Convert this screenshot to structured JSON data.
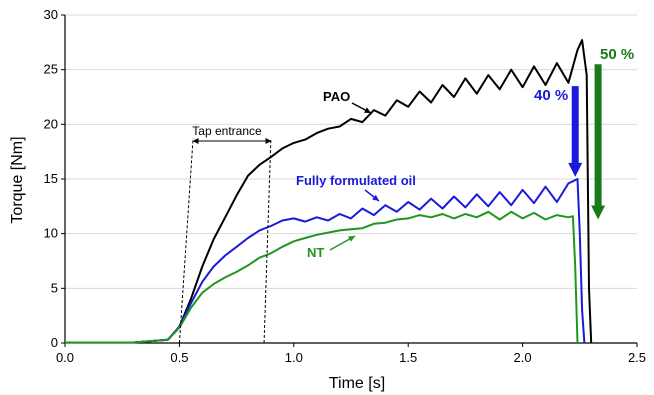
{
  "chart_data": {
    "type": "line",
    "xlabel": "Time [s]",
    "ylabel": "Torque [Nm]",
    "xlim": [
      0,
      2.5
    ],
    "ylim": [
      0,
      30
    ],
    "x_ticks": [
      "0.0",
      "0.5",
      "1.0",
      "1.5",
      "2.0",
      "2.5"
    ],
    "y_ticks": [
      "0",
      "5",
      "10",
      "15",
      "20",
      "25",
      "30"
    ],
    "grid": "horizontal",
    "series": [
      {
        "name": "PAO",
        "color": "#000000",
        "points": [
          [
            0,
            0.05
          ],
          [
            0.3,
            0.05
          ],
          [
            0.45,
            0.3
          ],
          [
            0.5,
            1.5
          ],
          [
            0.55,
            4
          ],
          [
            0.6,
            7
          ],
          [
            0.65,
            9.5
          ],
          [
            0.7,
            11.5
          ],
          [
            0.75,
            13.5
          ],
          [
            0.8,
            15.3
          ],
          [
            0.85,
            16.3
          ],
          [
            0.9,
            17
          ],
          [
            0.95,
            17.8
          ],
          [
            1.0,
            18.3
          ],
          [
            1.05,
            18.6
          ],
          [
            1.1,
            19.2
          ],
          [
            1.15,
            19.6
          ],
          [
            1.2,
            19.8
          ],
          [
            1.25,
            20.5
          ],
          [
            1.3,
            20.2
          ],
          [
            1.35,
            21.3
          ],
          [
            1.4,
            20.8
          ],
          [
            1.45,
            22.2
          ],
          [
            1.5,
            21.6
          ],
          [
            1.55,
            23.0
          ],
          [
            1.6,
            22.0
          ],
          [
            1.65,
            23.6
          ],
          [
            1.7,
            22.5
          ],
          [
            1.75,
            24.2
          ],
          [
            1.8,
            22.8
          ],
          [
            1.85,
            24.5
          ],
          [
            1.9,
            23.2
          ],
          [
            1.95,
            25.0
          ],
          [
            2.0,
            23.4
          ],
          [
            2.05,
            25.3
          ],
          [
            2.1,
            23.6
          ],
          [
            2.15,
            25.6
          ],
          [
            2.2,
            23.8
          ],
          [
            2.24,
            26.8
          ],
          [
            2.26,
            27.7
          ],
          [
            2.28,
            24.5
          ],
          [
            2.29,
            5
          ],
          [
            2.3,
            0
          ]
        ]
      },
      {
        "name": "Fully formulated oil",
        "color": "#1a1adc",
        "points": [
          [
            0,
            0.05
          ],
          [
            0.3,
            0.05
          ],
          [
            0.45,
            0.3
          ],
          [
            0.5,
            1.5
          ],
          [
            0.55,
            3.6
          ],
          [
            0.6,
            5.6
          ],
          [
            0.65,
            7
          ],
          [
            0.7,
            8
          ],
          [
            0.75,
            8.8
          ],
          [
            0.8,
            9.6
          ],
          [
            0.85,
            10.3
          ],
          [
            0.9,
            10.7
          ],
          [
            0.95,
            11.2
          ],
          [
            1.0,
            11.4
          ],
          [
            1.05,
            11.1
          ],
          [
            1.1,
            11.5
          ],
          [
            1.15,
            11.2
          ],
          [
            1.2,
            11.8
          ],
          [
            1.25,
            11.4
          ],
          [
            1.3,
            12.3
          ],
          [
            1.35,
            11.7
          ],
          [
            1.4,
            12.6
          ],
          [
            1.45,
            12.0
          ],
          [
            1.5,
            12.9
          ],
          [
            1.55,
            12.2
          ],
          [
            1.6,
            13.2
          ],
          [
            1.65,
            12.3
          ],
          [
            1.7,
            13.4
          ],
          [
            1.75,
            12.4
          ],
          [
            1.8,
            13.6
          ],
          [
            1.85,
            12.5
          ],
          [
            1.9,
            13.8
          ],
          [
            1.95,
            12.6
          ],
          [
            2.0,
            14.0
          ],
          [
            2.05,
            12.8
          ],
          [
            2.1,
            14.3
          ],
          [
            2.15,
            12.9
          ],
          [
            2.2,
            14.6
          ],
          [
            2.24,
            15.0
          ],
          [
            2.25,
            10
          ],
          [
            2.26,
            3
          ],
          [
            2.27,
            0
          ]
        ]
      },
      {
        "name": "NT",
        "color": "#1f961f",
        "points": [
          [
            0,
            0.05
          ],
          [
            0.3,
            0.05
          ],
          [
            0.45,
            0.3
          ],
          [
            0.5,
            1.4
          ],
          [
            0.55,
            3.2
          ],
          [
            0.6,
            4.6
          ],
          [
            0.65,
            5.4
          ],
          [
            0.7,
            6.0
          ],
          [
            0.75,
            6.5
          ],
          [
            0.8,
            7.1
          ],
          [
            0.85,
            7.8
          ],
          [
            0.9,
            8.2
          ],
          [
            0.95,
            8.8
          ],
          [
            1.0,
            9.3
          ],
          [
            1.05,
            9.6
          ],
          [
            1.1,
            9.9
          ],
          [
            1.15,
            10.1
          ],
          [
            1.2,
            10.3
          ],
          [
            1.25,
            10.4
          ],
          [
            1.3,
            10.5
          ],
          [
            1.35,
            10.9
          ],
          [
            1.4,
            11.0
          ],
          [
            1.45,
            11.3
          ],
          [
            1.5,
            11.4
          ],
          [
            1.55,
            11.7
          ],
          [
            1.6,
            11.5
          ],
          [
            1.65,
            11.8
          ],
          [
            1.7,
            11.4
          ],
          [
            1.75,
            11.8
          ],
          [
            1.8,
            11.5
          ],
          [
            1.85,
            12.0
          ],
          [
            1.9,
            11.3
          ],
          [
            1.95,
            12.0
          ],
          [
            2.0,
            11.4
          ],
          [
            2.05,
            11.9
          ],
          [
            2.1,
            11.3
          ],
          [
            2.15,
            11.7
          ],
          [
            2.2,
            11.5
          ],
          [
            2.22,
            11.6
          ],
          [
            2.23,
            7
          ],
          [
            2.24,
            0
          ]
        ]
      }
    ],
    "annotations": {
      "tap_entrance": "Tap entrance",
      "pao_label": "PAO",
      "ffo_label": "Fully formulated oil",
      "nt_label": "NT",
      "reduction_blue": "40 %",
      "reduction_green": "50 %"
    },
    "tap_entrance_range": [
      0.5,
      0.87
    ],
    "arrows": [
      {
        "from": 23.5,
        "to": 15.2,
        "x": 2.23,
        "color": "#1a1adc"
      },
      {
        "from": 25.5,
        "to": 11.3,
        "x": 2.33,
        "color": "#1a7a1a"
      }
    ]
  }
}
